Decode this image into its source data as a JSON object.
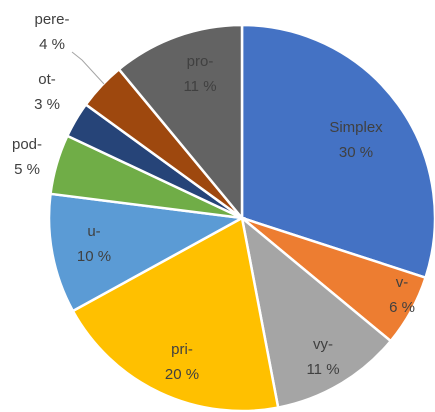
{
  "chart_data": {
    "type": "pie",
    "categories": [
      "Simplex",
      "v-",
      "vy-",
      "pri-",
      "u-",
      "pod-",
      "ot-",
      "pere-",
      "pro-"
    ],
    "values": [
      30,
      6,
      11,
      20,
      10,
      5,
      3,
      4,
      11
    ],
    "value_labels": [
      "30 %",
      "6 %",
      "11 %",
      "20 %",
      "10 %",
      "5 %",
      "3 %",
      "4 %",
      "11 %"
    ],
    "colors": [
      "#4472c4",
      "#ed7d31",
      "#a5a5a5",
      "#ffc000",
      "#5b9bd5",
      "#70ad47",
      "#264478",
      "#9e480e",
      "#636363"
    ]
  }
}
